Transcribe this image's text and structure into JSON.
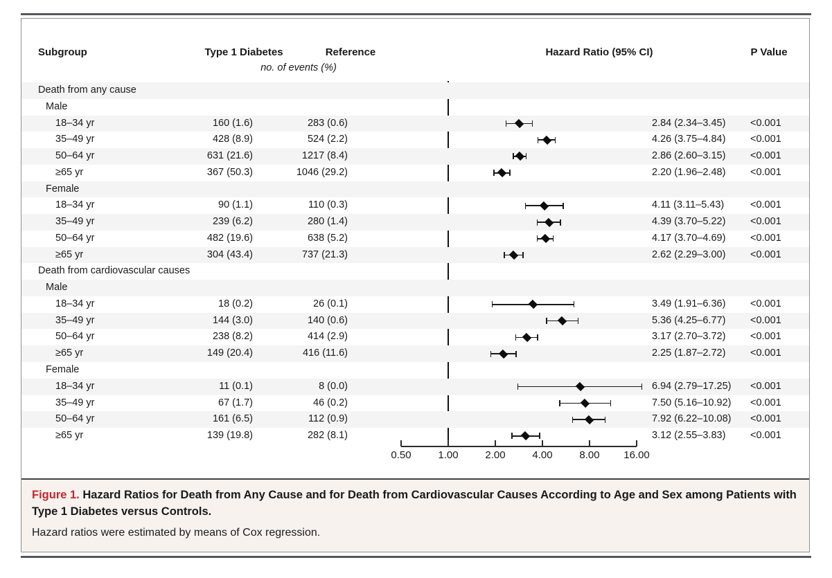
{
  "figure": {
    "columns": {
      "subgroup": "Subgroup",
      "t1d": "Type 1 Diabetes",
      "reference": "Reference",
      "events_note": "no. of events (%)",
      "hazard_ratio": "Hazard Ratio (95% CI)",
      "p_value": "P Value"
    },
    "caption": {
      "label": "Figure 1.",
      "title": " Hazard Ratios for Death from Any Cause and for Death from Cardiovascular Causes According to Age and Sex among Patients with Type 1 Diabetes versus Controls.",
      "note": "Hazard ratios were estimated by means of Cox regression."
    },
    "colors": {
      "caption_label_red": "#c5262c",
      "caption_background": "#f7f2ee",
      "row_shade": "#f4f4f4",
      "marker_black": "#0d0d0d",
      "rule_gray": "#55565a"
    }
  },
  "chart_data": {
    "type": "forest",
    "title": "Hazard Ratios for Death from Any Cause and for Death from Cardiovascular Causes According to Age and Sex",
    "x_axis": {
      "scale": "log2",
      "tick_labels": [
        "0.50",
        "1.00",
        "2.00",
        "4.00",
        "8.00",
        "16.00"
      ],
      "tick_values": [
        0.5,
        1.0,
        2.0,
        4.0,
        8.0,
        16.0
      ],
      "range": [
        0.5,
        16.0
      ],
      "reference_line": 1.0
    },
    "rows": [
      {
        "kind": "section",
        "label": "Death from any cause"
      },
      {
        "kind": "group",
        "label": "Male"
      },
      {
        "kind": "data",
        "label": "18–34 yr",
        "t1d": "160 (1.6)",
        "ref": "283 (0.6)",
        "hr": 2.84,
        "lo": 2.34,
        "hi": 3.45,
        "hr_text": "2.84 (2.34–3.45)",
        "p": "<0.001"
      },
      {
        "kind": "data",
        "label": "35–49 yr",
        "t1d": "428 (8.9)",
        "ref": "524 (2.2)",
        "hr": 4.26,
        "lo": 3.75,
        "hi": 4.84,
        "hr_text": "4.26 (3.75–4.84)",
        "p": "<0.001"
      },
      {
        "kind": "data",
        "label": "50–64 yr",
        "t1d": "631 (21.6)",
        "ref": "1217 (8.4)",
        "hr": 2.86,
        "lo": 2.6,
        "hi": 3.15,
        "hr_text": "2.86 (2.60–3.15)",
        "p": "<0.001"
      },
      {
        "kind": "data",
        "label": "≥65 yr",
        "t1d": "367 (50.3)",
        "ref": "1046 (29.2)",
        "hr": 2.2,
        "lo": 1.96,
        "hi": 2.48,
        "hr_text": "2.20 (1.96–2.48)",
        "p": "<0.001"
      },
      {
        "kind": "group",
        "label": "Female"
      },
      {
        "kind": "data",
        "label": "18–34 yr",
        "t1d": "90 (1.1)",
        "ref": "110 (0.3)",
        "hr": 4.11,
        "lo": 3.11,
        "hi": 5.43,
        "hr_text": "4.11 (3.11–5.43)",
        "p": "<0.001"
      },
      {
        "kind": "data",
        "label": "35–49 yr",
        "t1d": "239 (6.2)",
        "ref": "280 (1.4)",
        "hr": 4.39,
        "lo": 3.7,
        "hi": 5.22,
        "hr_text": "4.39 (3.70–5.22)",
        "p": "<0.001"
      },
      {
        "kind": "data",
        "label": "50–64 yr",
        "t1d": "482 (19.6)",
        "ref": "638 (5.2)",
        "hr": 4.17,
        "lo": 3.7,
        "hi": 4.69,
        "hr_text": "4.17 (3.70–4.69)",
        "p": "<0.001"
      },
      {
        "kind": "data",
        "label": "≥65 yr",
        "t1d": "304 (43.4)",
        "ref": "737 (21.3)",
        "hr": 2.62,
        "lo": 2.29,
        "hi": 3.0,
        "hr_text": "2.62 (2.29–3.00)",
        "p": "<0.001"
      },
      {
        "kind": "section",
        "label": "Death from cardiovascular causes"
      },
      {
        "kind": "group",
        "label": "Male"
      },
      {
        "kind": "data",
        "label": "18–34 yr",
        "t1d": "18 (0.2)",
        "ref": "26 (0.1)",
        "hr": 3.49,
        "lo": 1.91,
        "hi": 6.36,
        "hr_text": "3.49 (1.91–6.36)",
        "p": "<0.001"
      },
      {
        "kind": "data",
        "label": "35–49 yr",
        "t1d": "144 (3.0)",
        "ref": "140 (0.6)",
        "hr": 5.36,
        "lo": 4.25,
        "hi": 6.77,
        "hr_text": "5.36 (4.25–6.77)",
        "p": "<0.001"
      },
      {
        "kind": "data",
        "label": "50–64 yr",
        "t1d": "238 (8.2)",
        "ref": "414 (2.9)",
        "hr": 3.17,
        "lo": 2.7,
        "hi": 3.72,
        "hr_text": "3.17 (2.70–3.72)",
        "p": "<0.001"
      },
      {
        "kind": "data",
        "label": "≥65 yr",
        "t1d": "149 (20.4)",
        "ref": "416 (11.6)",
        "hr": 2.25,
        "lo": 1.87,
        "hi": 2.72,
        "hr_text": "2.25 (1.87–2.72)",
        "p": "<0.001"
      },
      {
        "kind": "group",
        "label": "Female"
      },
      {
        "kind": "data",
        "label": "18–34 yr",
        "t1d": "11 (0.1)",
        "ref": "8 (0.0)",
        "hr": 6.94,
        "lo": 2.79,
        "hi": 17.25,
        "hr_text": "6.94 (2.79–17.25)",
        "p": "<0.001"
      },
      {
        "kind": "data",
        "label": "35–49 yr",
        "t1d": "67 (1.7)",
        "ref": "46 (0.2)",
        "hr": 7.5,
        "lo": 5.16,
        "hi": 10.92,
        "hr_text": "7.50 (5.16–10.92)",
        "p": "<0.001"
      },
      {
        "kind": "data",
        "label": "50–64 yr",
        "t1d": "161 (6.5)",
        "ref": "112 (0.9)",
        "hr": 7.92,
        "lo": 6.22,
        "hi": 10.08,
        "hr_text": "7.92 (6.22–10.08)",
        "p": "<0.001"
      },
      {
        "kind": "data",
        "label": "≥65 yr",
        "t1d": "139 (19.8)",
        "ref": "282 (8.1)",
        "hr": 3.12,
        "lo": 2.55,
        "hi": 3.83,
        "hr_text": "3.12 (2.55–3.83)",
        "p": "<0.001"
      }
    ]
  }
}
